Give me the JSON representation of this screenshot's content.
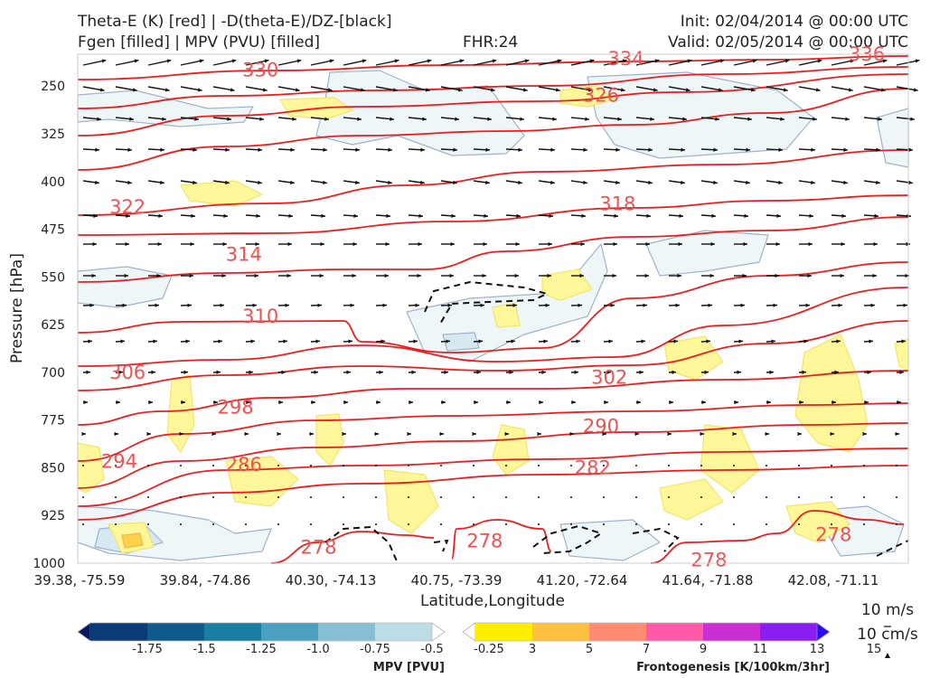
{
  "header": {
    "title_line1": "Theta-E (K) [red] | -D(theta-E)/DZ-[black]",
    "title_line2": "Fgen [filled] | MPV (PVU) [filled]",
    "fhr": "FHR:24",
    "init": "Init: 02/04/2014 @ 00:00 UTC",
    "valid": "Valid: 02/05/2014 @ 00:00 UTC"
  },
  "chart_data": {
    "type": "cross-section",
    "title": "Theta-E (K) [red] | -D(theta-E)/DZ-[black] / Fgen [filled] | MPV (PVU) [filled]",
    "xlabel": "Latitude,Longitude",
    "ylabel": "Pressure [hPa]",
    "y_ticks": [
      250,
      325,
      400,
      475,
      550,
      625,
      700,
      775,
      850,
      925,
      1000
    ],
    "ylim": [
      1000,
      200
    ],
    "x_ticks": [
      "39.38, -75.59",
      "39.84, -74.86",
      "40.30, -74.13",
      "40.75, -73.39",
      "41.20, -72.64",
      "41.64, -71.88",
      "42.08, -71.11"
    ],
    "theta_e_contour_labels": [
      {
        "label": "330",
        "x_frac": 0.22,
        "p": 225
      },
      {
        "label": "334",
        "x_frac": 0.66,
        "p": 207
      },
      {
        "label": "336",
        "x_frac": 0.95,
        "p": 200
      },
      {
        "label": "326",
        "x_frac": 0.63,
        "p": 265
      },
      {
        "label": "322",
        "x_frac": 0.06,
        "p": 440
      },
      {
        "label": "318",
        "x_frac": 0.65,
        "p": 435
      },
      {
        "label": "314",
        "x_frac": 0.2,
        "p": 515
      },
      {
        "label": "310",
        "x_frac": 0.22,
        "p": 612
      },
      {
        "label": "306",
        "x_frac": 0.06,
        "p": 700
      },
      {
        "label": "302",
        "x_frac": 0.64,
        "p": 708
      },
      {
        "label": "298",
        "x_frac": 0.19,
        "p": 755
      },
      {
        "label": "290",
        "x_frac": 0.63,
        "p": 785
      },
      {
        "label": "294",
        "x_frac": 0.05,
        "p": 840
      },
      {
        "label": "286",
        "x_frac": 0.2,
        "p": 845
      },
      {
        "label": "282",
        "x_frac": 0.62,
        "p": 850
      },
      {
        "label": "278",
        "x_frac": 0.29,
        "p": 975
      },
      {
        "label": "278",
        "x_frac": 0.49,
        "p": 965
      },
      {
        "label": "278",
        "x_frac": 0.76,
        "p": 995
      },
      {
        "label": "278",
        "x_frac": 0.91,
        "p": 955
      }
    ],
    "mpv_colorbar": {
      "label": "MPV [PVU]",
      "ticks": [
        "-1.75",
        "-1.5",
        "-1.25",
        "-1.0",
        "-0.75",
        "-0.5",
        "-0.25"
      ],
      "colors": [
        "#08195e",
        "#0a3a78",
        "#0f5a8c",
        "#1a7da3",
        "#4aa0bf",
        "#86bfd4",
        "#bcdde6",
        "#ffffff"
      ]
    },
    "fgen_colorbar": {
      "label": "Frontogenesis [K/100km/3hr]",
      "ticks": [
        "3",
        "5",
        "7",
        "9",
        "11",
        "13",
        "15"
      ],
      "colors": [
        "#ffffff",
        "#ffee00",
        "#ffc040",
        "#ff8c70",
        "#ff5aa8",
        "#cc2ed6",
        "#8a1ef0",
        "#2a0af5"
      ]
    },
    "wind_key": {
      "horizontal": "10 m/s",
      "vertical": "10 cm/s"
    }
  }
}
